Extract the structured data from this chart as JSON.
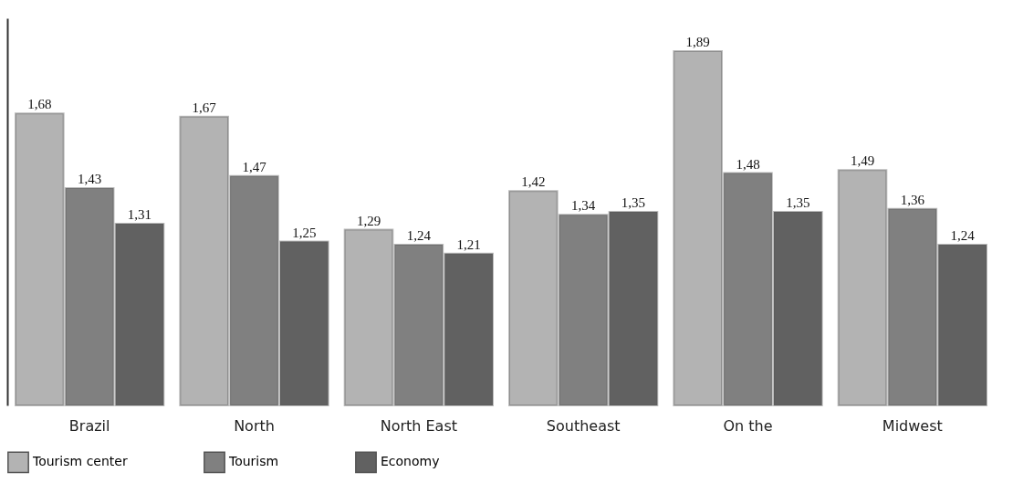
{
  "chart_data": {
    "type": "bar",
    "categories": [
      "Brazil",
      "North",
      "North East",
      "Southeast",
      "On the",
      "Midwest"
    ],
    "ylim": [
      0.7,
      2.0
    ],
    "legend": "bottom",
    "tick_labels": "x",
    "series": [
      {
        "name": "Tourism center",
        "color": "#b3b3b3",
        "values": [
          1.68,
          1.67,
          1.29,
          1.42,
          1.89,
          1.49
        ],
        "value_labels": [
          "1,68",
          "1,67",
          "1,29",
          "1,42",
          "1,89",
          "1,49"
        ]
      },
      {
        "name": "Tourism",
        "color": "#808080",
        "values": [
          1.43,
          1.47,
          1.24,
          1.34,
          1.48,
          1.36
        ],
        "value_labels": [
          "1,43",
          "1,47",
          "1,24",
          "1,34",
          "1,48",
          "1,36"
        ]
      },
      {
        "name": "Economy",
        "color": "#616161",
        "values": [
          1.31,
          1.25,
          1.21,
          1.35,
          1.35,
          1.24
        ],
        "value_labels": [
          "1,31",
          "1,25",
          "1,21",
          "1,35",
          "1,35",
          "1,24"
        ]
      }
    ]
  }
}
